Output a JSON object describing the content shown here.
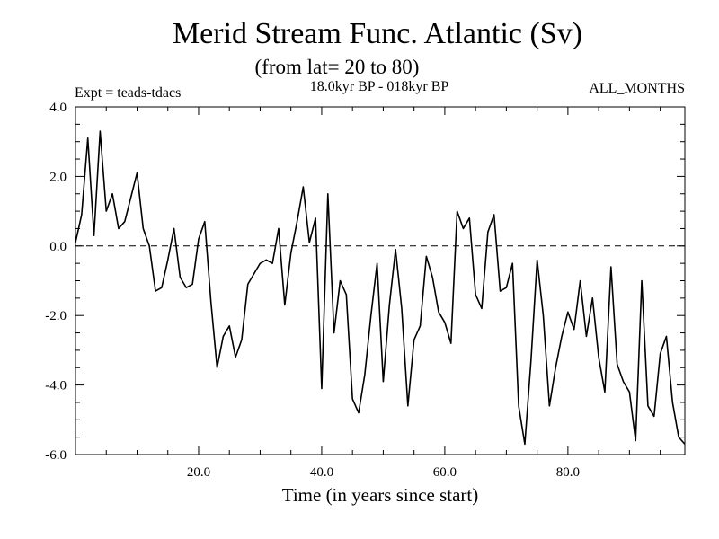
{
  "chart_data": {
    "type": "line",
    "title": "Merid Stream Func. Atlantic (Sv)",
    "subtitle": "(from lat= 20 to 80)",
    "experiment_label": "Expt = teads-tdacs",
    "period_label": "18.0kyr BP - 018kyr BP",
    "months_label": "ALL_MONTHS",
    "xlabel": "Time (in years since start)",
    "ylabel": "",
    "xlim": [
      0,
      99
    ],
    "ylim": [
      -6.0,
      4.0
    ],
    "x_ticks": [
      20,
      40,
      60,
      80
    ],
    "x_tick_labels": [
      "20.0",
      "40.0",
      "60.0",
      "80.0"
    ],
    "y_ticks": [
      -6,
      -4,
      -2,
      0,
      2,
      4
    ],
    "y_tick_labels": [
      "-6.0",
      "-4.0",
      "-2.0",
      "0.0",
      "2.0",
      "4.0"
    ],
    "zero_line": "dashed",
    "grid": false,
    "series": [
      {
        "name": "Merid Stream Func. Atlantic",
        "x": [
          0,
          1,
          2,
          3,
          4,
          5,
          6,
          7,
          8,
          9,
          10,
          11,
          12,
          13,
          14,
          15,
          16,
          17,
          18,
          19,
          20,
          21,
          22,
          23,
          24,
          25,
          26,
          27,
          28,
          29,
          30,
          31,
          32,
          33,
          34,
          35,
          36,
          37,
          38,
          39,
          40,
          41,
          42,
          43,
          44,
          45,
          46,
          47,
          48,
          49,
          50,
          51,
          52,
          53,
          54,
          55,
          56,
          57,
          58,
          59,
          60,
          61,
          62,
          63,
          64,
          65,
          66,
          67,
          68,
          69,
          70,
          71,
          72,
          73,
          74,
          75,
          76,
          77,
          78,
          79,
          80,
          81,
          82,
          83,
          84,
          85,
          86,
          87,
          88,
          89,
          90,
          91,
          92,
          93,
          94,
          95,
          96,
          97,
          98,
          99
        ],
        "values": [
          0.1,
          0.9,
          3.1,
          0.3,
          3.3,
          1.0,
          1.5,
          0.5,
          0.7,
          1.4,
          2.1,
          0.5,
          0.0,
          -1.3,
          -1.2,
          -0.4,
          0.5,
          -0.9,
          -1.2,
          -1.1,
          0.2,
          0.7,
          -1.6,
          -3.5,
          -2.6,
          -2.3,
          -3.2,
          -2.7,
          -1.1,
          -0.8,
          -0.5,
          -0.4,
          -0.5,
          0.5,
          -1.7,
          -0.2,
          0.7,
          1.7,
          0.1,
          0.8,
          -4.1,
          1.5,
          -2.5,
          -1.0,
          -1.4,
          -4.4,
          -4.8,
          -3.7,
          -2.0,
          -0.5,
          -3.9,
          -1.7,
          -0.1,
          -1.8,
          -4.6,
          -2.7,
          -2.3,
          -0.3,
          -0.9,
          -1.9,
          -2.2,
          -2.8,
          1.0,
          0.5,
          0.8,
          -1.4,
          -1.8,
          0.4,
          0.9,
          -1.3,
          -1.2,
          -0.5,
          -4.6,
          -5.7,
          -3.3,
          -0.4,
          -2.0,
          -4.6,
          -3.5,
          -2.6,
          -1.9,
          -2.4,
          -1.0,
          -2.6,
          -1.5,
          -3.2,
          -4.2,
          -0.6,
          -3.4,
          -3.9,
          -4.2,
          -5.6,
          -1.0,
          -4.6,
          -4.9,
          -3.1,
          -2.6,
          -4.5,
          -5.5,
          -5.7
        ]
      }
    ]
  }
}
